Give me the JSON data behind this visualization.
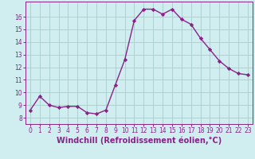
{
  "x": [
    0,
    1,
    2,
    3,
    4,
    5,
    6,
    7,
    8,
    9,
    10,
    11,
    12,
    13,
    14,
    15,
    16,
    17,
    18,
    19,
    20,
    21,
    22,
    23
  ],
  "y": [
    8.6,
    9.7,
    9.0,
    8.8,
    8.9,
    8.9,
    8.4,
    8.3,
    8.6,
    10.6,
    12.6,
    15.7,
    16.6,
    16.6,
    16.2,
    16.6,
    15.8,
    15.4,
    14.3,
    13.4,
    12.5,
    11.9,
    11.5,
    11.4
  ],
  "line_color": "#882288",
  "marker": "D",
  "marker_size": 2.2,
  "line_width": 1.0,
  "xlabel": "Windchill (Refroidissement éolien,°C)",
  "ylim": [
    7.5,
    17.2
  ],
  "yticks": [
    8,
    9,
    10,
    11,
    12,
    13,
    14,
    15,
    16
  ],
  "xticks": [
    0,
    1,
    2,
    3,
    4,
    5,
    6,
    7,
    8,
    9,
    10,
    11,
    12,
    13,
    14,
    15,
    16,
    17,
    18,
    19,
    20,
    21,
    22,
    23
  ],
  "background_color": "#d0eef0",
  "grid_color": "#aacccc",
  "tick_color": "#882288",
  "tick_fontsize": 5.5,
  "label_fontsize": 7.0
}
